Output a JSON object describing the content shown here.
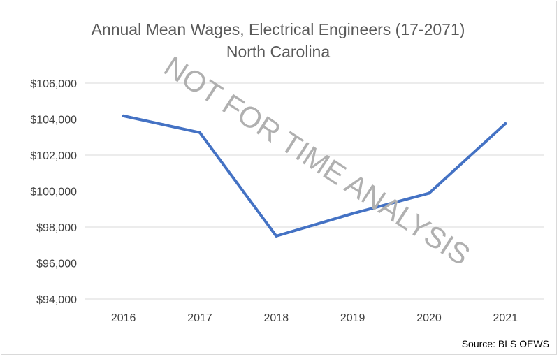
{
  "chart_data": {
    "type": "line",
    "title": "Annual Mean Wages, Electrical Engineers (17-2071)",
    "subtitle": "North Carolina",
    "categories": [
      "2016",
      "2017",
      "2018",
      "2019",
      "2020",
      "2021"
    ],
    "series": [
      {
        "values": [
          104180,
          103250,
          97500,
          98750,
          99880,
          103750
        ]
      }
    ],
    "ylim": [
      94000,
      106000
    ],
    "yticks": [
      94000,
      96000,
      98000,
      100000,
      102000,
      104000,
      106000
    ],
    "ytick_labels": [
      "$94,000",
      "$96,000",
      "$98,000",
      "$100,000",
      "$102,000",
      "$104,000",
      "$106,000"
    ],
    "grid": "horizontal",
    "line_color": "#4472c4",
    "grid_color": "#d9d9d9",
    "watermark": "NOT FOR TIME ANALYSIS",
    "source": "Source: BLS OEWS"
  }
}
